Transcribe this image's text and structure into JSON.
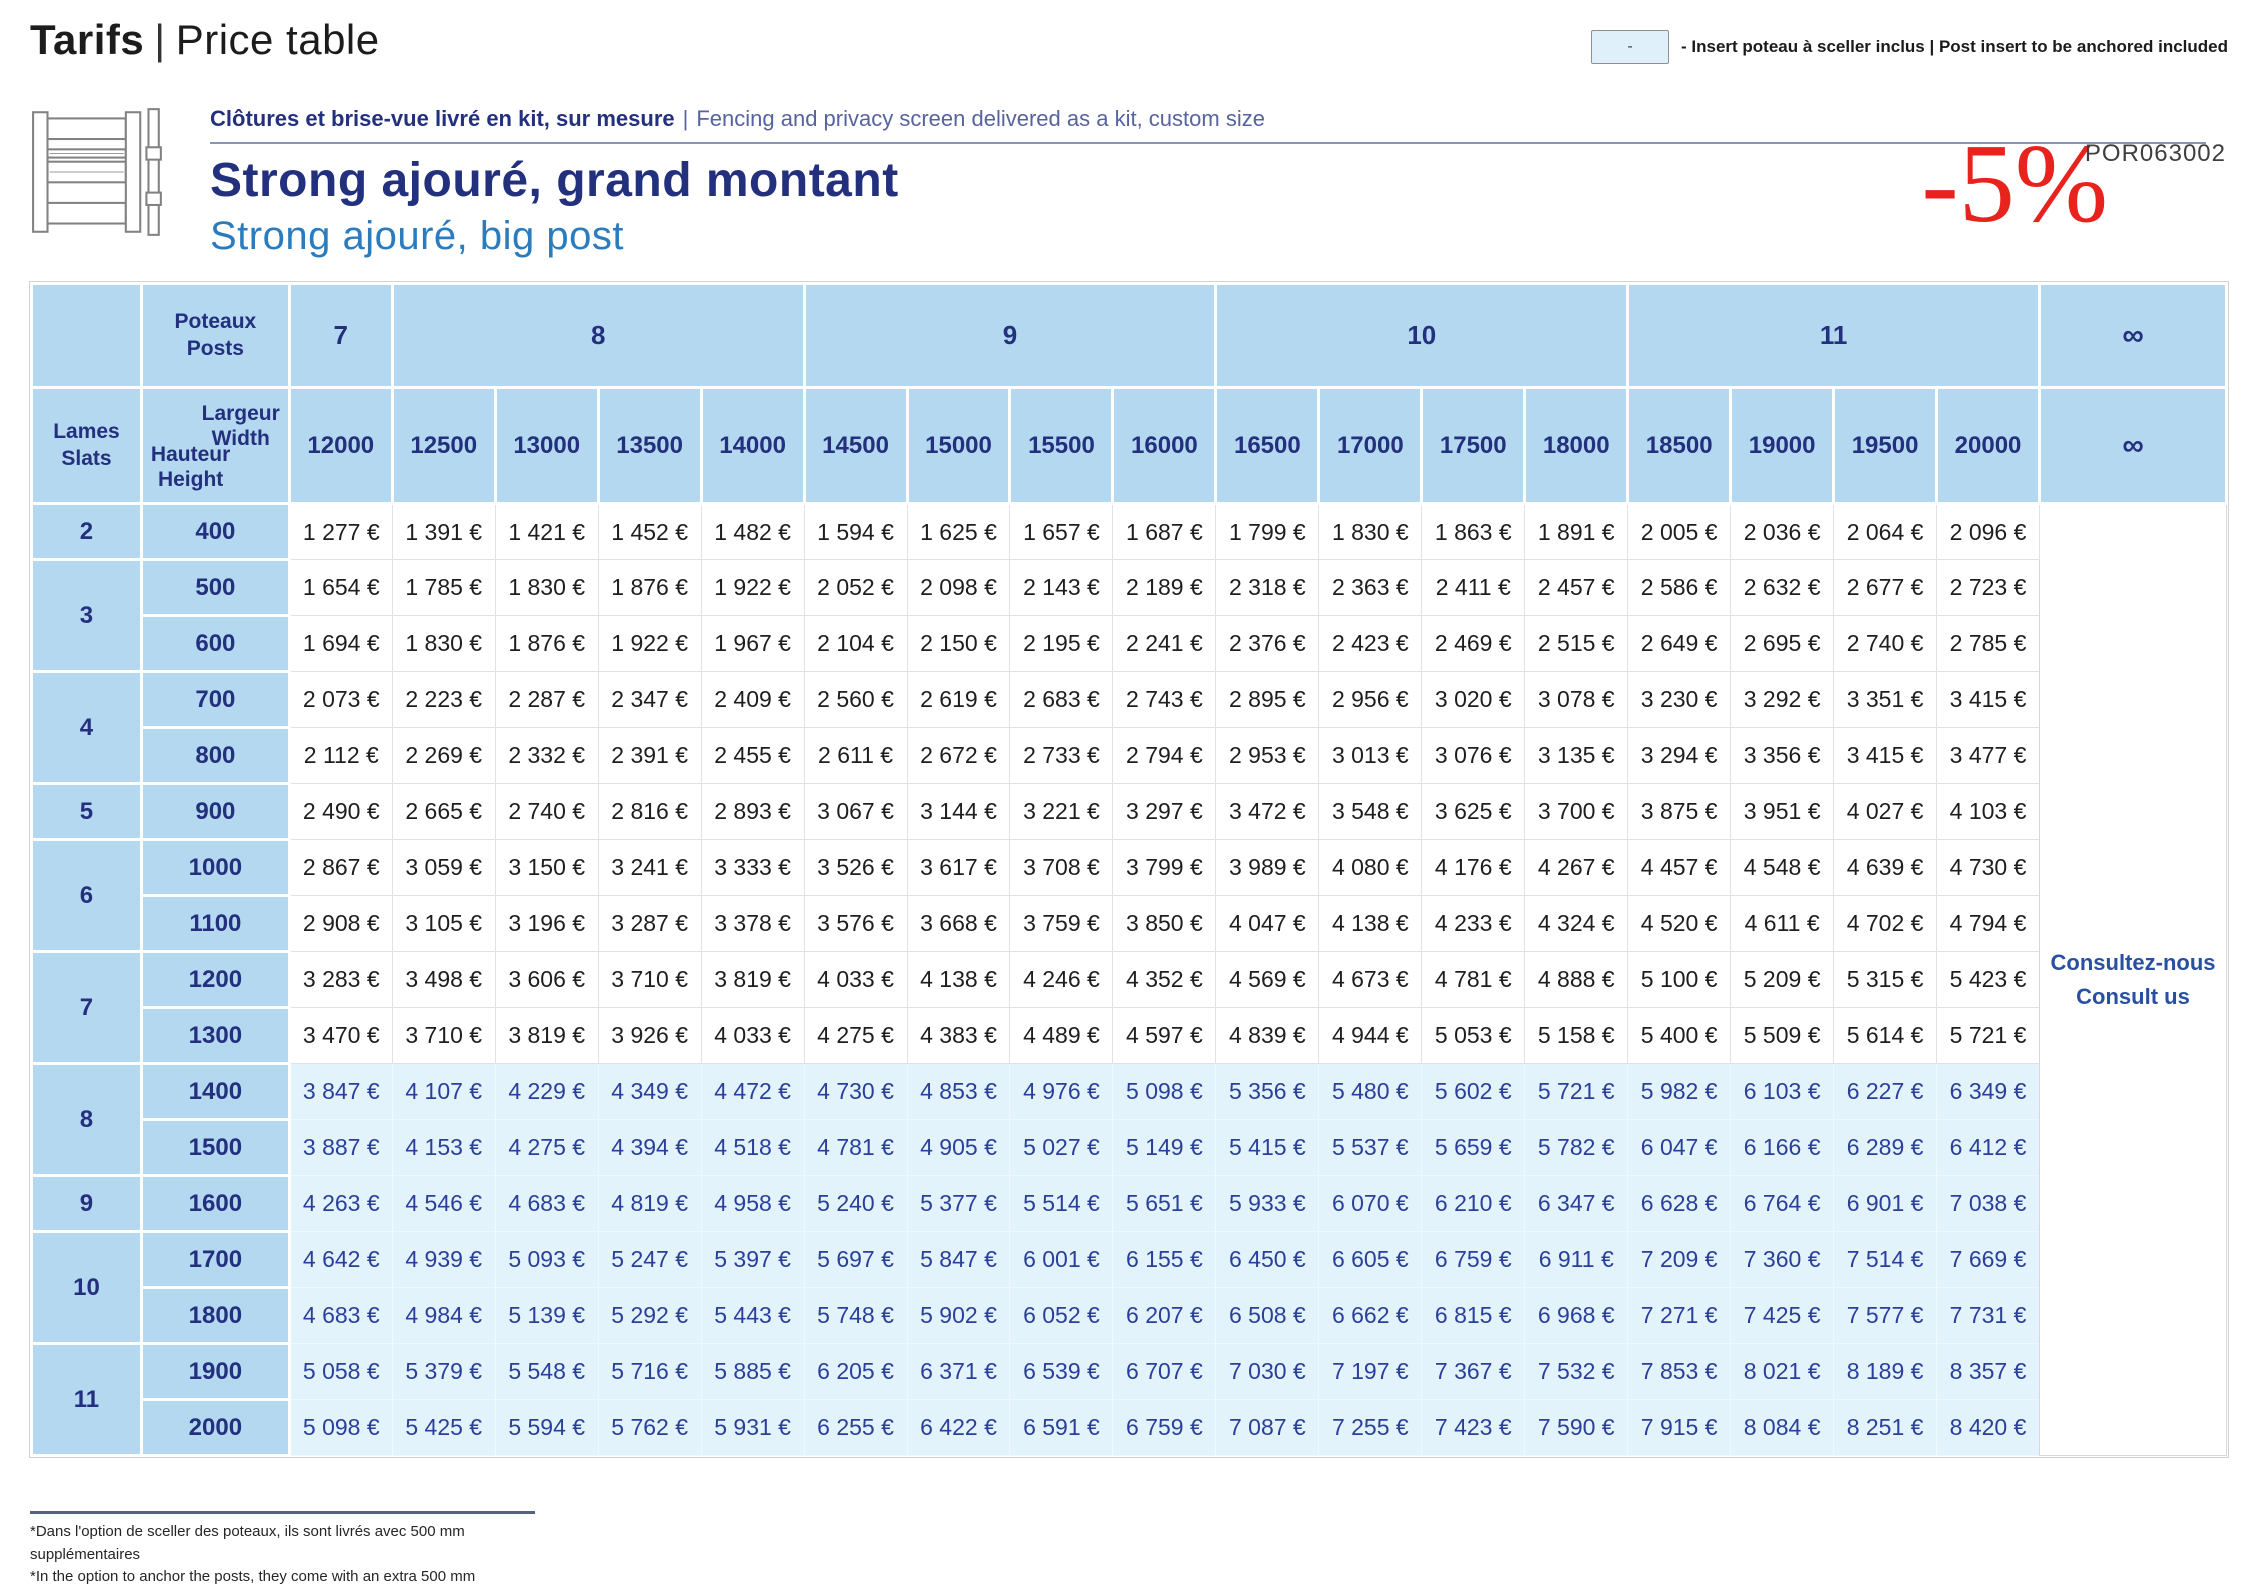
{
  "header": {
    "title_fr": "Tarifs",
    "separator": "|",
    "title_en": "Price table",
    "legend_box": "-",
    "legend_text": "- Insert poteau à sceller inclus | Post insert to be anchored included"
  },
  "product": {
    "kit_fr": "Clôtures et brise-vue livré en kit, sur mesure",
    "kit_sep": "|",
    "kit_en": "Fencing and privacy screen delivered as a kit, custom size",
    "name_fr": "Strong ajouré, grand montant",
    "name_en": "Strong ajouré, big post",
    "discount": "-5%",
    "ref_code": "POR063002"
  },
  "table": {
    "posts_fr": "Poteaux",
    "posts_en": "Posts",
    "slats_fr": "Lames",
    "slats_en": "Slats",
    "width_fr": "Largeur",
    "width_en": "Width",
    "height_fr": "Hauteur",
    "height_en": "Height",
    "infinity": "∞",
    "consult_fr": "Consultez-nous",
    "consult_en": "Consult us",
    "currency": "€",
    "post_groups": [
      {
        "label": "7",
        "span": 1
      },
      {
        "label": "8",
        "span": 4
      },
      {
        "label": "9",
        "span": 4
      },
      {
        "label": "10",
        "span": 4
      },
      {
        "label": "11",
        "span": 4
      }
    ],
    "widths": [
      12000,
      12500,
      13000,
      13500,
      14000,
      14500,
      15000,
      15500,
      16000,
      16500,
      17000,
      17500,
      18000,
      18500,
      19000,
      19500,
      20000
    ],
    "slat_groups": [
      {
        "label": "2",
        "size": 1
      },
      {
        "label": "3",
        "size": 2
      },
      {
        "label": "4",
        "size": 2
      },
      {
        "label": "5",
        "size": 1
      },
      {
        "label": "6",
        "size": 2
      },
      {
        "label": "7",
        "size": 2
      },
      {
        "label": "8",
        "size": 2
      },
      {
        "label": "9",
        "size": 1
      },
      {
        "label": "10",
        "size": 2
      },
      {
        "label": "11",
        "size": 2
      }
    ],
    "rows": [
      {
        "height": "400",
        "highlighted": false,
        "prices": [
          1277,
          1391,
          1421,
          1452,
          1482,
          1594,
          1625,
          1657,
          1687,
          1799,
          1830,
          1863,
          1891,
          2005,
          2036,
          2064,
          2096
        ]
      },
      {
        "height": "500",
        "highlighted": false,
        "prices": [
          1654,
          1785,
          1830,
          1876,
          1922,
          2052,
          2098,
          2143,
          2189,
          2318,
          2363,
          2411,
          2457,
          2586,
          2632,
          2677,
          2723
        ]
      },
      {
        "height": "600",
        "highlighted": false,
        "prices": [
          1694,
          1830,
          1876,
          1922,
          1967,
          2104,
          2150,
          2195,
          2241,
          2376,
          2423,
          2469,
          2515,
          2649,
          2695,
          2740,
          2785
        ]
      },
      {
        "height": "700",
        "highlighted": false,
        "prices": [
          2073,
          2223,
          2287,
          2347,
          2409,
          2560,
          2619,
          2683,
          2743,
          2895,
          2956,
          3020,
          3078,
          3230,
          3292,
          3351,
          3415
        ]
      },
      {
        "height": "800",
        "highlighted": false,
        "prices": [
          2112,
          2269,
          2332,
          2391,
          2455,
          2611,
          2672,
          2733,
          2794,
          2953,
          3013,
          3076,
          3135,
          3294,
          3356,
          3415,
          3477
        ]
      },
      {
        "height": "900",
        "highlighted": false,
        "prices": [
          2490,
          2665,
          2740,
          2816,
          2893,
          3067,
          3144,
          3221,
          3297,
          3472,
          3548,
          3625,
          3700,
          3875,
          3951,
          4027,
          4103
        ]
      },
      {
        "height": "1000",
        "highlighted": false,
        "prices": [
          2867,
          3059,
          3150,
          3241,
          3333,
          3526,
          3617,
          3708,
          3799,
          3989,
          4080,
          4176,
          4267,
          4457,
          4548,
          4639,
          4730
        ]
      },
      {
        "height": "1100",
        "highlighted": false,
        "prices": [
          2908,
          3105,
          3196,
          3287,
          3378,
          3576,
          3668,
          3759,
          3850,
          4047,
          4138,
          4233,
          4324,
          4520,
          4611,
          4702,
          4794
        ]
      },
      {
        "height": "1200",
        "highlighted": false,
        "prices": [
          3283,
          3498,
          3606,
          3710,
          3819,
          4033,
          4138,
          4246,
          4352,
          4569,
          4673,
          4781,
          4888,
          5100,
          5209,
          5315,
          5423
        ]
      },
      {
        "height": "1300",
        "highlighted": false,
        "prices": [
          3470,
          3710,
          3819,
          3926,
          4033,
          4275,
          4383,
          4489,
          4597,
          4839,
          4944,
          5053,
          5158,
          5400,
          5509,
          5614,
          5721
        ]
      },
      {
        "height": "1400",
        "highlighted": true,
        "prices": [
          3847,
          4107,
          4229,
          4349,
          4472,
          4730,
          4853,
          4976,
          5098,
          5356,
          5480,
          5602,
          5721,
          5982,
          6103,
          6227,
          6349
        ]
      },
      {
        "height": "1500",
        "highlighted": true,
        "prices": [
          3887,
          4153,
          4275,
          4394,
          4518,
          4781,
          4905,
          5027,
          5149,
          5415,
          5537,
          5659,
          5782,
          6047,
          6166,
          6289,
          6412
        ]
      },
      {
        "height": "1600",
        "highlighted": true,
        "prices": [
          4263,
          4546,
          4683,
          4819,
          4958,
          5240,
          5377,
          5514,
          5651,
          5933,
          6070,
          6210,
          6347,
          6628,
          6764,
          6901,
          7038
        ]
      },
      {
        "height": "1700",
        "highlighted": true,
        "prices": [
          4642,
          4939,
          5093,
          5247,
          5397,
          5697,
          5847,
          6001,
          6155,
          6450,
          6605,
          6759,
          6911,
          7209,
          7360,
          7514,
          7669
        ]
      },
      {
        "height": "1800",
        "highlighted": true,
        "prices": [
          4683,
          4984,
          5139,
          5292,
          5443,
          5748,
          5902,
          6052,
          6207,
          6508,
          6662,
          6815,
          6968,
          7271,
          7425,
          7577,
          7731
        ]
      },
      {
        "height": "1900",
        "highlighted": true,
        "prices": [
          5058,
          5379,
          5548,
          5716,
          5885,
          6205,
          6371,
          6539,
          6707,
          7030,
          7197,
          7367,
          7532,
          7853,
          8021,
          8189,
          8357
        ]
      },
      {
        "height": "2000",
        "highlighted": true,
        "prices": [
          5098,
          5425,
          5594,
          5762,
          5931,
          6255,
          6422,
          6591,
          6759,
          7087,
          7255,
          7423,
          7590,
          7915,
          8084,
          8251,
          8420
        ]
      }
    ]
  },
  "footnote": {
    "fr": "*Dans l'option de sceller des poteaux, ils sont livrés avec 500 mm supplémentaires",
    "en": "*In the option to anchor the posts, they come with an extra 500 mm"
  },
  "colors": {
    "header_blue": "#b5d8f1",
    "highlight_blue": "#e2f3fb",
    "navy_text": "#22307e",
    "highlight_price_text": "#2b3f9a",
    "subtitle_blue": "#2a7cbe",
    "discount_red": "#e8221c",
    "legend_swatch": "#dff0fb"
  }
}
